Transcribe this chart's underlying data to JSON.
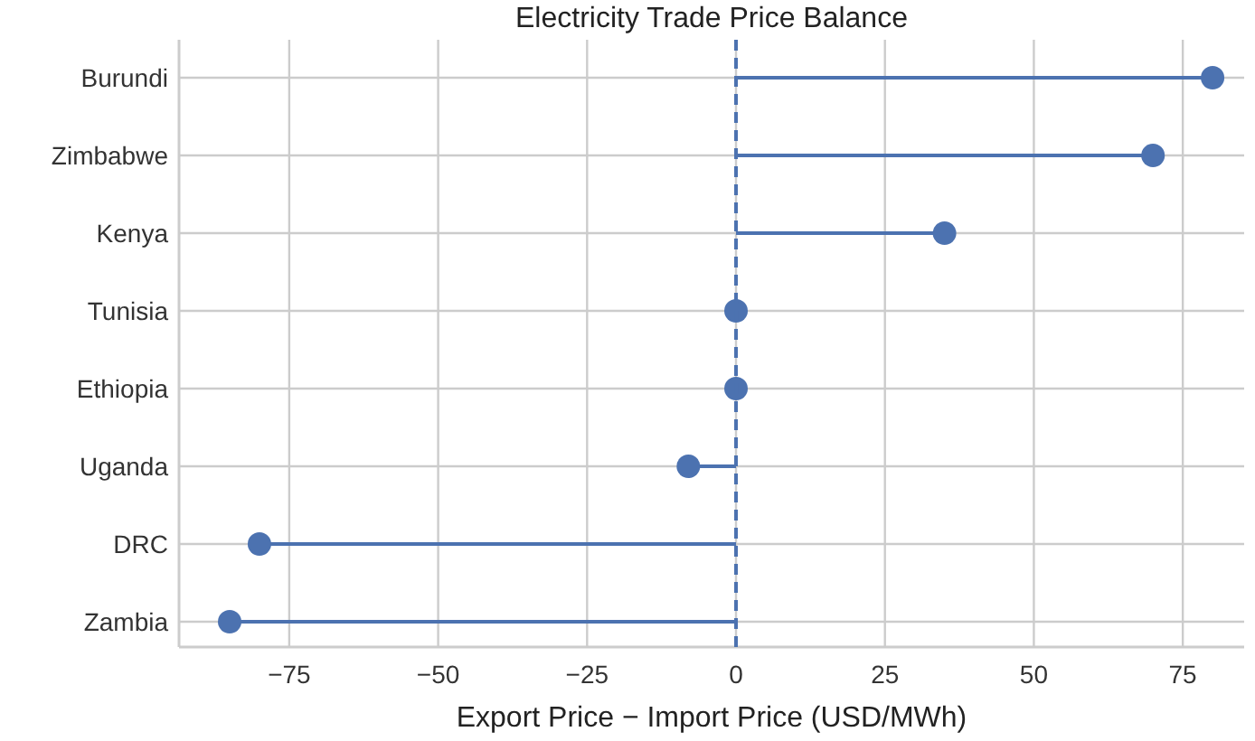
{
  "chart_data": {
    "type": "lollipop",
    "orientation": "horizontal",
    "title": "Electricity Trade Price Balance",
    "xlabel": "Export Price − Import Price (USD/MWh)",
    "categories": [
      "Burundi",
      "Zimbabwe",
      "Kenya",
      "Tunisia",
      "Ethiopia",
      "Uganda",
      "DRC",
      "Zambia"
    ],
    "series": [
      {
        "color": "#4c72b0",
        "values": [
          80,
          70,
          35,
          0,
          0,
          -8,
          -80,
          -85
        ]
      }
    ],
    "xlim": [
      -93.5,
      85.3
    ],
    "xticks": [
      {
        "value": -75,
        "label": "−75"
      },
      {
        "value": -50,
        "label": "−50"
      },
      {
        "value": -25,
        "label": "−25"
      },
      0,
      25,
      50,
      75
    ],
    "ref_lines": [
      {
        "axis": "x",
        "value": 0,
        "color": "#4c72b0",
        "line_style": "dashed"
      }
    ],
    "grid": true,
    "marker": "circle"
  }
}
